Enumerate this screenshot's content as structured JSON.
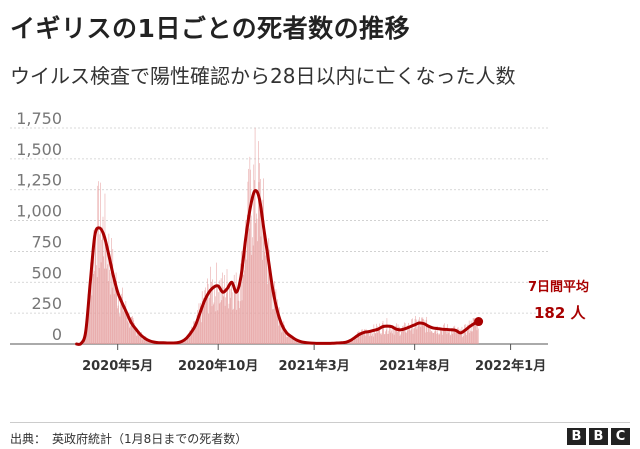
{
  "header": {
    "title": "イギリスの1日ごとの死者数の推移",
    "subtitle": "ウイルス検査で陽性確認から28日以内に亡くなった人数"
  },
  "footer": {
    "source": "出典：　英政府統計（1月8日までの死者数）",
    "logo": [
      "B",
      "B",
      "C"
    ]
  },
  "colors": {
    "bar": "#e6a0a0",
    "line": "#a80000",
    "grid": "#cccccc",
    "axis_text": "#777777"
  },
  "chart_data": {
    "type": "bar",
    "title": "イギリスの1日ごとの死者数の推移",
    "subtitle": "ウイルス検査で陽性確認から28日以内に亡くなった人数",
    "xlabel": "",
    "ylabel": "",
    "ylim": [
      0,
      1750
    ],
    "y_ticks": [
      0,
      250,
      500,
      750,
      1000,
      1250,
      1500,
      1750
    ],
    "y_tick_labels": [
      "0",
      "250",
      "500",
      "750",
      "1,000",
      "1,250",
      "1,500",
      "1,750"
    ],
    "x_ticks": [
      {
        "label": "2020年5月",
        "week": 9
      },
      {
        "label": "2020年10月",
        "week": 31
      },
      {
        "label": "2021年3月",
        "week": 52
      },
      {
        "label": "2021年8月",
        "week": 74
      },
      {
        "label": "2022年1月",
        "week": 95
      }
    ],
    "x_range_weeks": [
      -1,
      101
    ],
    "bar_series_name": "日ごとの死者数",
    "line_series_name": "7日間平均",
    "weekly_avg": [
      {
        "week": 0,
        "value": 0
      },
      {
        "week": 1,
        "value": 5
      },
      {
        "week": 2,
        "value": 100
      },
      {
        "week": 3,
        "value": 500
      },
      {
        "week": 4,
        "value": 880
      },
      {
        "week": 5,
        "value": 940
      },
      {
        "week": 6,
        "value": 880
      },
      {
        "week": 7,
        "value": 730
      },
      {
        "week": 8,
        "value": 560
      },
      {
        "week": 9,
        "value": 420
      },
      {
        "week": 10,
        "value": 330
      },
      {
        "week": 11,
        "value": 250
      },
      {
        "week": 12,
        "value": 170
      },
      {
        "week": 13,
        "value": 120
      },
      {
        "week": 14,
        "value": 75
      },
      {
        "week": 15,
        "value": 45
      },
      {
        "week": 16,
        "value": 25
      },
      {
        "week": 17,
        "value": 15
      },
      {
        "week": 18,
        "value": 10
      },
      {
        "week": 19,
        "value": 10
      },
      {
        "week": 20,
        "value": 8
      },
      {
        "week": 21,
        "value": 8
      },
      {
        "week": 22,
        "value": 10
      },
      {
        "week": 23,
        "value": 20
      },
      {
        "week": 24,
        "value": 45
      },
      {
        "week": 25,
        "value": 90
      },
      {
        "week": 26,
        "value": 150
      },
      {
        "week": 27,
        "value": 250
      },
      {
        "week": 28,
        "value": 350
      },
      {
        "week": 29,
        "value": 420
      },
      {
        "week": 30,
        "value": 460
      },
      {
        "week": 31,
        "value": 470
      },
      {
        "week": 32,
        "value": 420
      },
      {
        "week": 33,
        "value": 450
      },
      {
        "week": 34,
        "value": 500
      },
      {
        "week": 35,
        "value": 420
      },
      {
        "week": 36,
        "value": 550
      },
      {
        "week": 37,
        "value": 850
      },
      {
        "week": 38,
        "value": 1100
      },
      {
        "week": 39,
        "value": 1240
      },
      {
        "week": 40,
        "value": 1180
      },
      {
        "week": 41,
        "value": 930
      },
      {
        "week": 42,
        "value": 680
      },
      {
        "week": 43,
        "value": 430
      },
      {
        "week": 44,
        "value": 260
      },
      {
        "week": 45,
        "value": 150
      },
      {
        "week": 46,
        "value": 90
      },
      {
        "week": 47,
        "value": 60
      },
      {
        "week": 48,
        "value": 35
      },
      {
        "week": 49,
        "value": 20
      },
      {
        "week": 50,
        "value": 12
      },
      {
        "week": 51,
        "value": 8
      },
      {
        "week": 52,
        "value": 6
      },
      {
        "week": 53,
        "value": 5
      },
      {
        "week": 54,
        "value": 5
      },
      {
        "week": 55,
        "value": 5
      },
      {
        "week": 56,
        "value": 6
      },
      {
        "week": 57,
        "value": 8
      },
      {
        "week": 58,
        "value": 10
      },
      {
        "week": 59,
        "value": 15
      },
      {
        "week": 60,
        "value": 30
      },
      {
        "week": 61,
        "value": 55
      },
      {
        "week": 62,
        "value": 80
      },
      {
        "week": 63,
        "value": 95
      },
      {
        "week": 64,
        "value": 100
      },
      {
        "week": 65,
        "value": 110
      },
      {
        "week": 66,
        "value": 120
      },
      {
        "week": 67,
        "value": 140
      },
      {
        "week": 68,
        "value": 145
      },
      {
        "week": 69,
        "value": 140
      },
      {
        "week": 70,
        "value": 120
      },
      {
        "week": 71,
        "value": 115
      },
      {
        "week": 72,
        "value": 125
      },
      {
        "week": 73,
        "value": 140
      },
      {
        "week": 74,
        "value": 155
      },
      {
        "week": 75,
        "value": 170
      },
      {
        "week": 76,
        "value": 165
      },
      {
        "week": 77,
        "value": 145
      },
      {
        "week": 78,
        "value": 130
      },
      {
        "week": 79,
        "value": 125
      },
      {
        "week": 80,
        "value": 120
      },
      {
        "week": 81,
        "value": 118
      },
      {
        "week": 82,
        "value": 115
      },
      {
        "week": 83,
        "value": 110
      },
      {
        "week": 84,
        "value": 90
      },
      {
        "week": 85,
        "value": 110
      },
      {
        "week": 86,
        "value": 140
      },
      {
        "week": 87,
        "value": 165
      },
      {
        "week": 88,
        "value": 182
      }
    ],
    "annotations": [
      {
        "text": "7日間平均",
        "week": 88,
        "value": 182
      },
      {
        "text": "182 人",
        "week": 88,
        "value": 182
      }
    ]
  }
}
